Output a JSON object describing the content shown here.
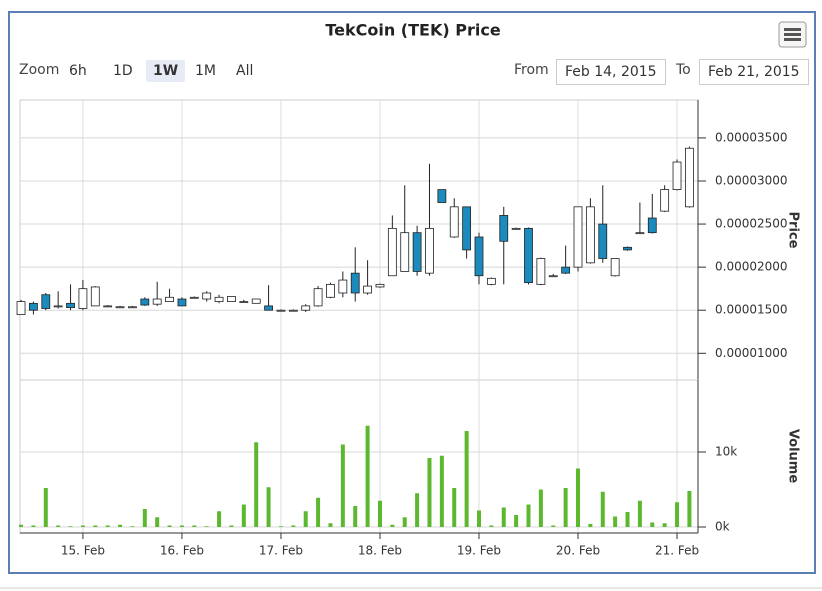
{
  "range_selector": {
    "label": "Zoom",
    "buttons": [
      "6h",
      "1D",
      "1W",
      "1M",
      "All"
    ],
    "selected": 2
  },
  "date_inputs": {
    "from_label": "From",
    "from": "Feb 14, 2015",
    "to_label": "To",
    "to": "Feb 21, 2015"
  },
  "chart_data": [
    {
      "type": "candlestick",
      "title": "TekCoin (TEK) Price",
      "y_label": "Price",
      "up_color": "#ffffff",
      "down_color": "#1b8bbd",
      "x": [
        "2015-02-14T09:00",
        "2015-02-14T12:00",
        "2015-02-14T15:00",
        "2015-02-14T18:00",
        "2015-02-14T21:00",
        "2015-02-15T00:00",
        "2015-02-15T03:00",
        "2015-02-15T06:00",
        "2015-02-15T09:00",
        "2015-02-15T12:00",
        "2015-02-15T15:00",
        "2015-02-15T18:00",
        "2015-02-15T21:00",
        "2015-02-16T00:00",
        "2015-02-16T03:00",
        "2015-02-16T06:00",
        "2015-02-16T09:00",
        "2015-02-16T12:00",
        "2015-02-16T15:00",
        "2015-02-16T18:00",
        "2015-02-16T21:00",
        "2015-02-17T00:00",
        "2015-02-17T03:00",
        "2015-02-17T06:00",
        "2015-02-17T09:00",
        "2015-02-17T12:00",
        "2015-02-17T15:00",
        "2015-02-17T18:00",
        "2015-02-17T21:00",
        "2015-02-18T00:00",
        "2015-02-18T03:00",
        "2015-02-18T06:00",
        "2015-02-18T09:00",
        "2015-02-18T12:00",
        "2015-02-18T15:00",
        "2015-02-18T18:00",
        "2015-02-18T21:00",
        "2015-02-19T00:00",
        "2015-02-19T03:00",
        "2015-02-19T06:00",
        "2015-02-19T09:00",
        "2015-02-19T12:00",
        "2015-02-19T15:00",
        "2015-02-19T18:00",
        "2015-02-19T21:00",
        "2015-02-20T00:00",
        "2015-02-20T03:00",
        "2015-02-20T06:00",
        "2015-02-20T09:00",
        "2015-02-20T12:00",
        "2015-02-20T15:00",
        "2015-02-20T18:00",
        "2015-02-20T21:00",
        "2015-02-21T00:00",
        "2015-02-21T03:00"
      ],
      "open": [
        1.45e-05,
        1.58e-05,
        1.68e-05,
        1.55e-05,
        1.58e-05,
        1.52e-05,
        1.55e-05,
        1.55e-05,
        1.54e-05,
        1.54e-05,
        1.63e-05,
        1.57e-05,
        1.6e-05,
        1.63e-05,
        1.65e-05,
        1.63e-05,
        1.6e-05,
        1.6e-05,
        1.6e-05,
        1.58e-05,
        1.55e-05,
        1.5e-05,
        1.5e-05,
        1.5e-05,
        1.55e-05,
        1.65e-05,
        1.7e-05,
        1.93e-05,
        1.7e-05,
        1.77e-05,
        1.9e-05,
        1.95e-05,
        2.4e-05,
        1.93e-05,
        2.9e-05,
        2.35e-05,
        2.7e-05,
        2.35e-05,
        1.8e-05,
        2.6e-05,
        2.45e-05,
        2.45e-05,
        1.8e-05,
        1.9e-05,
        2e-05,
        2e-05,
        2.05e-05,
        2.5e-05,
        1.9e-05,
        2.23e-05,
        2.4e-05,
        2.57e-05,
        2.65e-05,
        2.9e-05,
        2.7e-05
      ],
      "high": [
        1.62e-05,
        1.6e-05,
        1.7e-05,
        1.72e-05,
        1.8e-05,
        1.85e-05,
        1.78e-05,
        1.56e-05,
        1.55e-05,
        1.55e-05,
        1.65e-05,
        1.83e-05,
        1.75e-05,
        1.65e-05,
        1.66e-05,
        1.72e-05,
        1.68e-05,
        1.66e-05,
        1.62e-05,
        1.63e-05,
        1.79e-05,
        1.51e-05,
        1.51e-05,
        1.57e-05,
        1.78e-05,
        1.82e-05,
        1.95e-05,
        2.23e-05,
        2.08e-05,
        1.81e-05,
        2.6e-05,
        2.95e-05,
        2.48e-05,
        3.2e-05,
        2.9e-05,
        2.8e-05,
        2.7e-05,
        2.4e-05,
        1.88e-05,
        2.7e-05,
        2.46e-05,
        2.46e-05,
        2.11e-05,
        1.92e-05,
        2.25e-05,
        2.7e-05,
        2.8e-05,
        2.95e-05,
        2.1e-05,
        2.24e-05,
        2.75e-05,
        2.85e-05,
        2.95e-05,
        3.25e-05,
        3.4e-05
      ],
      "low": [
        1.45e-05,
        1.45e-05,
        1.5e-05,
        1.52e-05,
        1.5e-05,
        1.5e-05,
        1.55e-05,
        1.54e-05,
        1.53e-05,
        1.53e-05,
        1.55e-05,
        1.55e-05,
        1.6e-05,
        1.55e-05,
        1.64e-05,
        1.6e-05,
        1.58e-05,
        1.6e-05,
        1.59e-05,
        1.58e-05,
        1.5e-05,
        1.49e-05,
        1.49e-05,
        1.48e-05,
        1.54e-05,
        1.64e-05,
        1.65e-05,
        1.6e-05,
        1.68e-05,
        1.76e-05,
        1.9e-05,
        1.95e-05,
        1.9e-05,
        1.9e-05,
        2.75e-05,
        2.34e-05,
        2.1e-05,
        1.8e-05,
        1.79e-05,
        1.8e-05,
        2.44e-05,
        1.8e-05,
        1.79e-05,
        1.89e-05,
        1.92e-05,
        1.95e-05,
        2.04e-05,
        2.05e-05,
        1.89e-05,
        2.19e-05,
        2.39e-05,
        2.39e-05,
        2.64e-05,
        2.89e-05,
        2.69e-05
      ],
      "close": [
        1.6e-05,
        1.5e-05,
        1.52e-05,
        1.55e-05,
        1.53e-05,
        1.75e-05,
        1.77e-05,
        1.55e-05,
        1.54e-05,
        1.54e-05,
        1.56e-05,
        1.63e-05,
        1.65e-05,
        1.55e-05,
        1.65e-05,
        1.7e-05,
        1.65e-05,
        1.66e-05,
        1.6e-05,
        1.63e-05,
        1.5e-05,
        1.5e-05,
        1.5e-05,
        1.55e-05,
        1.75e-05,
        1.8e-05,
        1.85e-05,
        1.7e-05,
        1.78e-05,
        1.8e-05,
        2.45e-05,
        2.4e-05,
        1.95e-05,
        2.45e-05,
        2.75e-05,
        2.7e-05,
        2.2e-05,
        1.9e-05,
        1.87e-05,
        2.3e-05,
        2.45e-05,
        1.82e-05,
        2.1e-05,
        1.9e-05,
        1.93e-05,
        2.7e-05,
        2.7e-05,
        2.1e-05,
        2.1e-05,
        2.2e-05,
        2.4e-05,
        2.4e-05,
        2.9e-05,
        3.22e-05,
        3.38e-05
      ],
      "ylim": [
        6.9e-06,
        3.94e-05
      ],
      "yticks": [
        {
          "value": 1e-05,
          "label": "0.00001000"
        },
        {
          "value": 1.5e-05,
          "label": "0.00001500"
        },
        {
          "value": 2e-05,
          "label": "0.00002000"
        },
        {
          "value": 2.5e-05,
          "label": "0.00002500"
        },
        {
          "value": 3e-05,
          "label": "0.00003000"
        },
        {
          "value": 3.5e-05,
          "label": "0.00003500"
        }
      ],
      "xlim": [
        "2015-02-14T08:45",
        "2015-02-21T05:05"
      ]
    },
    {
      "type": "column",
      "y_label": "Volume",
      "color": "#5cb82e",
      "x": [
        "2015-02-14T09:00",
        "2015-02-14T12:00",
        "2015-02-14T15:00",
        "2015-02-14T18:00",
        "2015-02-14T21:00",
        "2015-02-15T00:00",
        "2015-02-15T03:00",
        "2015-02-15T06:00",
        "2015-02-15T09:00",
        "2015-02-15T12:00",
        "2015-02-15T15:00",
        "2015-02-15T18:00",
        "2015-02-15T21:00",
        "2015-02-16T00:00",
        "2015-02-16T03:00",
        "2015-02-16T06:00",
        "2015-02-16T09:00",
        "2015-02-16T12:00",
        "2015-02-16T15:00",
        "2015-02-16T18:00",
        "2015-02-16T21:00",
        "2015-02-17T00:00",
        "2015-02-17T03:00",
        "2015-02-17T06:00",
        "2015-02-17T09:00",
        "2015-02-17T12:00",
        "2015-02-17T15:00",
        "2015-02-17T18:00",
        "2015-02-17T21:00",
        "2015-02-18T00:00",
        "2015-02-18T03:00",
        "2015-02-18T06:00",
        "2015-02-18T09:00",
        "2015-02-18T12:00",
        "2015-02-18T15:00",
        "2015-02-18T18:00",
        "2015-02-18T21:00",
        "2015-02-19T00:00",
        "2015-02-19T03:00",
        "2015-02-19T06:00",
        "2015-02-19T09:00",
        "2015-02-19T12:00",
        "2015-02-19T15:00",
        "2015-02-19T18:00",
        "2015-02-19T21:00",
        "2015-02-20T00:00",
        "2015-02-20T03:00",
        "2015-02-20T06:00",
        "2015-02-20T09:00",
        "2015-02-20T12:00",
        "2015-02-20T15:00",
        "2015-02-20T18:00",
        "2015-02-20T21:00",
        "2015-02-21T00:00",
        "2015-02-21T03:00"
      ],
      "values": [
        300,
        200,
        5200,
        200,
        100,
        200,
        200,
        200,
        300,
        100,
        2400,
        1300,
        200,
        200,
        200,
        100,
        2100,
        200,
        3000,
        11300,
        5300,
        100,
        200,
        2100,
        3900,
        500,
        11000,
        2800,
        13500,
        3500,
        300,
        1300,
        4500,
        9200,
        9500,
        5200,
        12800,
        2200,
        200,
        2600,
        1600,
        3000,
        5000,
        200,
        5200,
        7800,
        400,
        4700,
        1400,
        2000,
        3500,
        600,
        500,
        3300,
        4800
      ],
      "ylim": [
        -800,
        19600
      ],
      "yticks": [
        {
          "value": 0,
          "label": "0k"
        },
        {
          "value": 10000,
          "label": "10k"
        }
      ],
      "xlim": [
        "2015-02-14T08:45",
        "2015-02-21T05:05"
      ],
      "xticks": [
        {
          "value": "2015-02-15T00:00",
          "label": "15. Feb"
        },
        {
          "value": "2015-02-16T00:00",
          "label": "16. Feb"
        },
        {
          "value": "2015-02-17T00:00",
          "label": "17. Feb"
        },
        {
          "value": "2015-02-18T00:00",
          "label": "18. Feb"
        },
        {
          "value": "2015-02-19T00:00",
          "label": "19. Feb"
        },
        {
          "value": "2015-02-20T00:00",
          "label": "20. Feb"
        },
        {
          "value": "2015-02-21T00:00",
          "label": "21. Feb"
        }
      ]
    }
  ]
}
